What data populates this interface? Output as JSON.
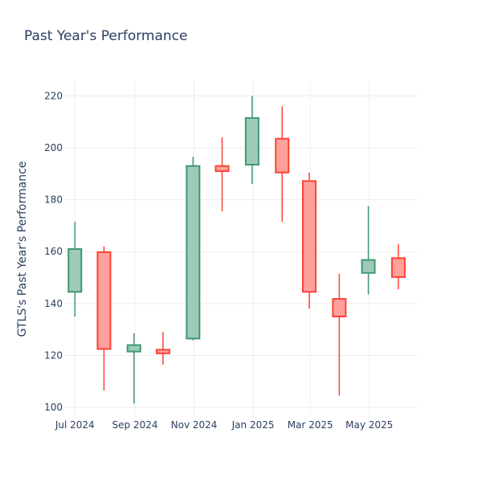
{
  "chart_data": {
    "type": "candlestick",
    "title": "Past Year's Performance",
    "ylabel": "GTLS's Past Year's Performance",
    "xlabel": "",
    "ylim": [
      96,
      226
    ],
    "yticks": [
      100,
      120,
      140,
      160,
      180,
      200,
      220
    ],
    "xticks": [
      {
        "label": "Jul 2024",
        "date": "2024-07-01"
      },
      {
        "label": "Sep 2024",
        "date": "2024-09-01"
      },
      {
        "label": "Nov 2024",
        "date": "2024-11-01"
      },
      {
        "label": "Jan 2025",
        "date": "2025-01-01"
      },
      {
        "label": "Mar 2025",
        "date": "2025-03-01"
      },
      {
        "label": "May 2025",
        "date": "2025-05-01"
      }
    ],
    "xlim": [
      "2024-06-20",
      "2025-06-20"
    ],
    "grid": true,
    "increasing_color": "#3d9970",
    "increasing_fill": "#9ecbb7",
    "decreasing_color": "#ff4136",
    "decreasing_fill": "#ffa09a",
    "candles": [
      {
        "date": "2024-07-01",
        "open": 144.5,
        "high": 171.5,
        "low": 135,
        "close": 161
      },
      {
        "date": "2024-07-31",
        "open": 159.8,
        "high": 162,
        "low": 106.5,
        "close": 122.5
      },
      {
        "date": "2024-08-31",
        "open": 121.5,
        "high": 128.5,
        "low": 101.5,
        "close": 124
      },
      {
        "date": "2024-09-30",
        "open": 122.2,
        "high": 129,
        "low": 116.5,
        "close": 120.8
      },
      {
        "date": "2024-10-31",
        "open": 126.5,
        "high": 196.5,
        "low": 125.8,
        "close": 193
      },
      {
        "date": "2024-11-30",
        "open": 193,
        "high": 204,
        "low": 175.5,
        "close": 191
      },
      {
        "date": "2024-12-31",
        "open": 193.5,
        "high": 220,
        "low": 186,
        "close": 211.5
      },
      {
        "date": "2025-01-31",
        "open": 203.5,
        "high": 216,
        "low": 171.5,
        "close": 190.5
      },
      {
        "date": "2025-02-28",
        "open": 187.2,
        "high": 190.5,
        "low": 138,
        "close": 144.5
      },
      {
        "date": "2025-03-31",
        "open": 141.8,
        "high": 151.5,
        "low": 104.5,
        "close": 135
      },
      {
        "date": "2025-04-30",
        "open": 151.8,
        "high": 177.5,
        "low": 143.5,
        "close": 156.8
      },
      {
        "date": "2025-05-31",
        "open": 157.5,
        "high": 163,
        "low": 145.5,
        "close": 150.2
      }
    ]
  }
}
